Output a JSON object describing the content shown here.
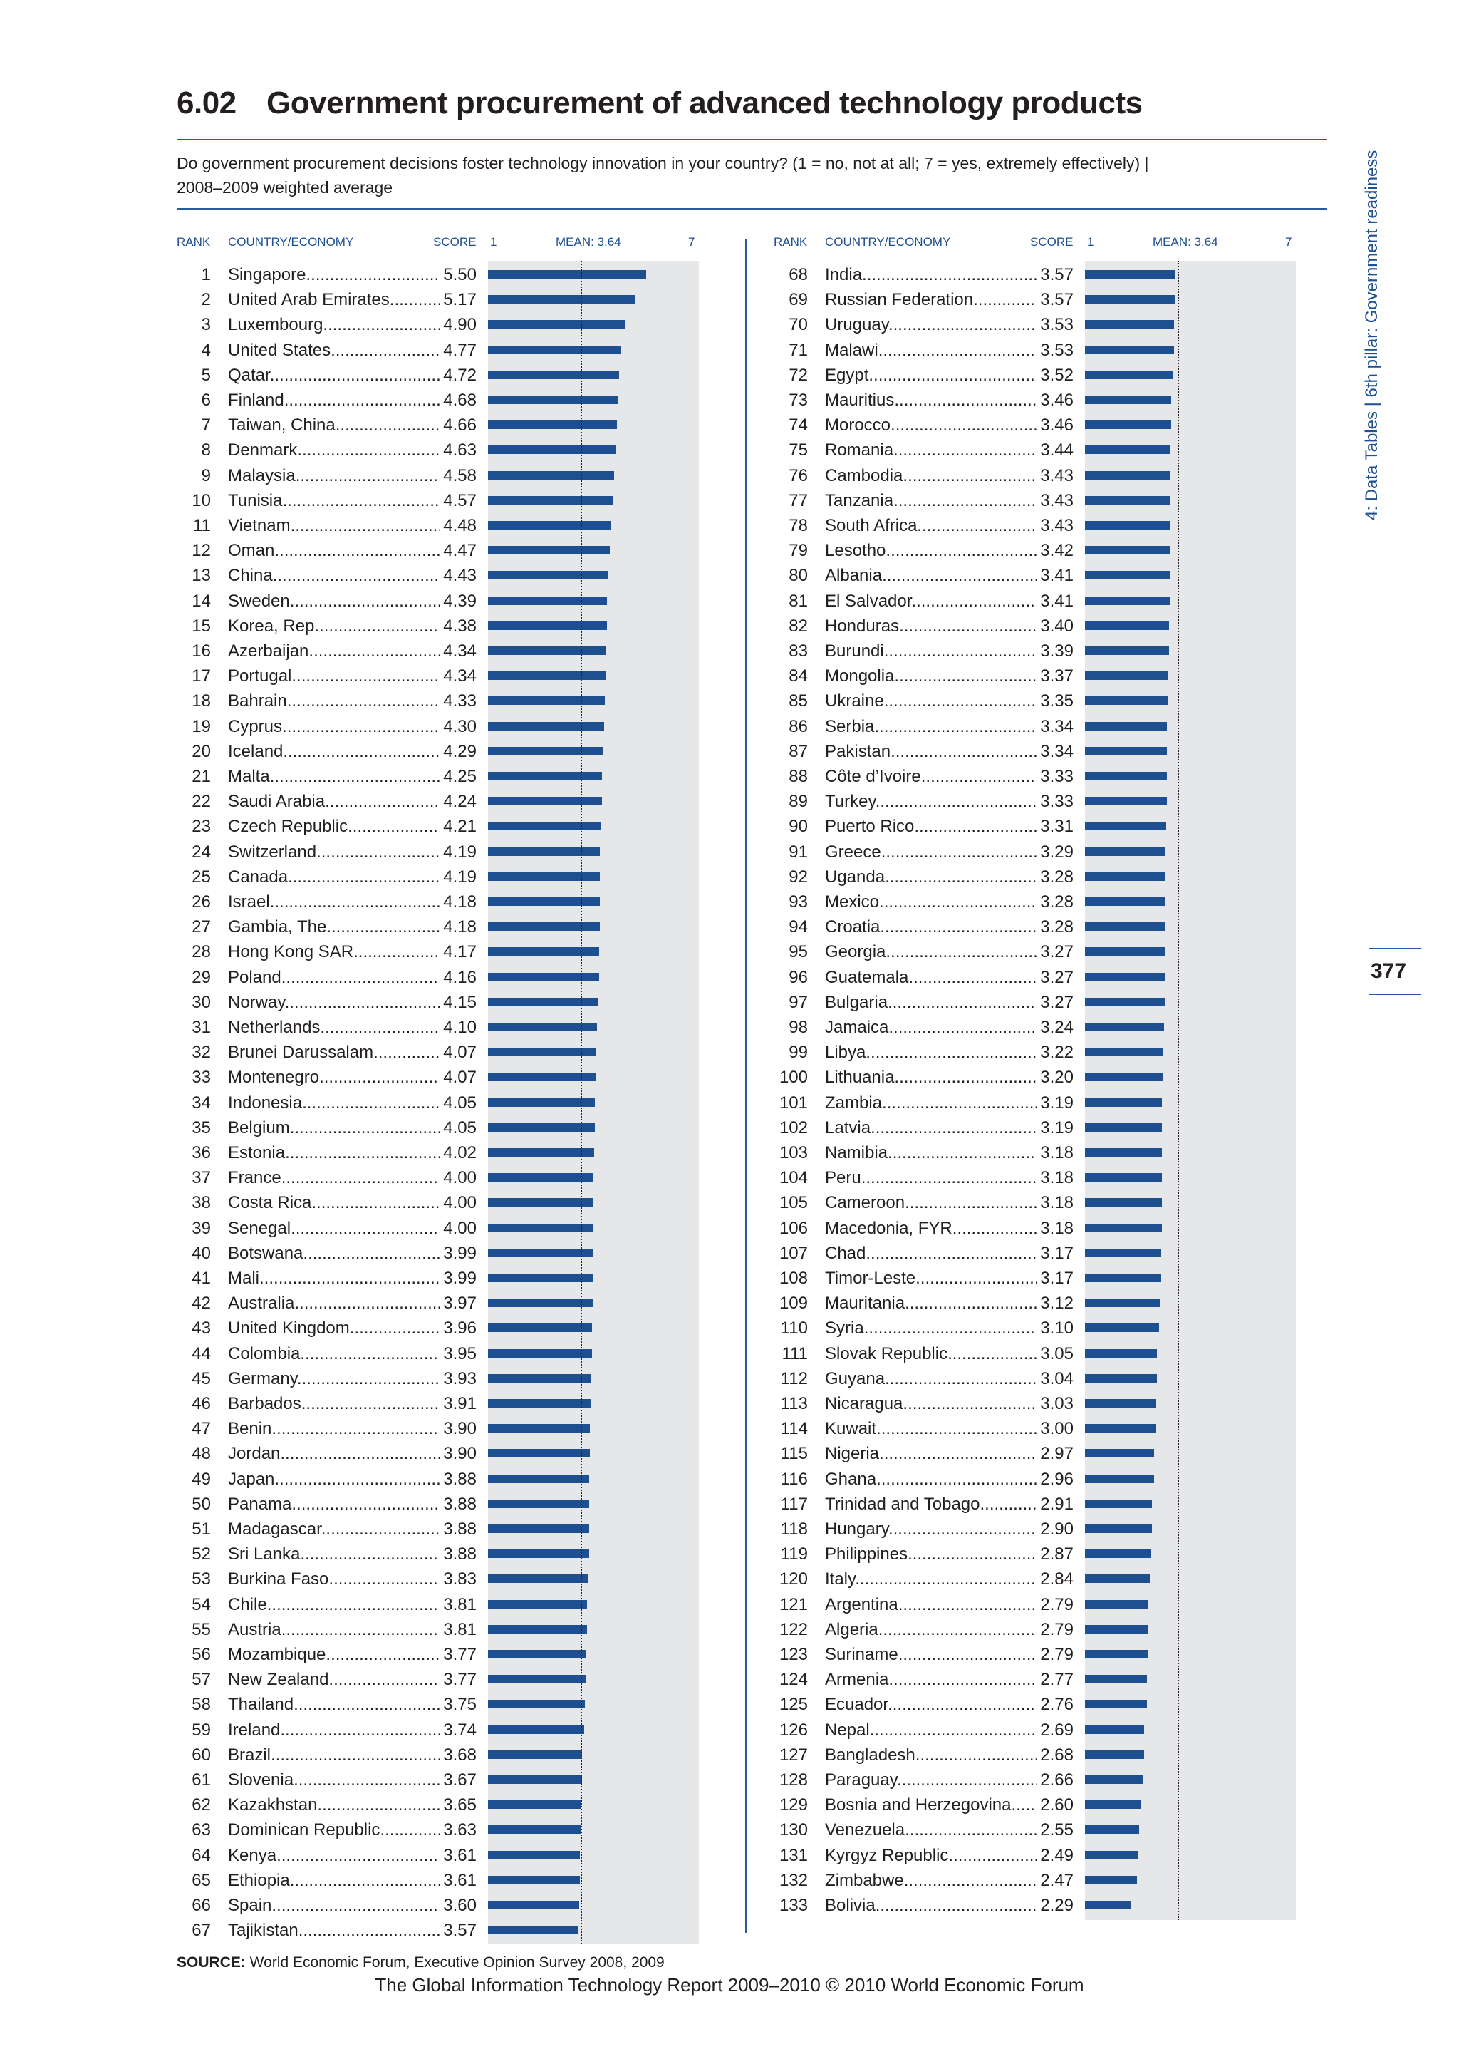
{
  "header": {
    "table_number": "6.02",
    "title": "Government procurement of advanced technology products",
    "question_line1": "Do government procurement decisions foster technology innovation in your country? (1 = no, not at all; 7 = yes, extremely effectively)  |",
    "question_line2": "2008–2009 weighted average"
  },
  "column_headers": {
    "rank": "RANK",
    "country": "COUNTRY/ECONOMY",
    "score": "SCORE",
    "scale_min": "1",
    "mean": "MEAN: 3.64",
    "scale_max": "7"
  },
  "side_label": "4: Data Tables  |  6th pillar: Government readiness",
  "page_number": "377",
  "source": {
    "label": "SOURCE:",
    "text": " World Economic Forum, Executive Opinion Survey 2008, 2009"
  },
  "footer": "The Global Information Technology Report 2009–2010 © 2010 World Economic Forum",
  "chart_data": {
    "type": "bar",
    "orientation": "horizontal",
    "xlim": [
      1,
      7
    ],
    "mean": 3.64,
    "rows": [
      {
        "rank": "1",
        "country": "Singapore",
        "score": 5.5
      },
      {
        "rank": "2",
        "country": "United Arab Emirates",
        "score": 5.17
      },
      {
        "rank": "3",
        "country": "Luxembourg",
        "score": 4.9
      },
      {
        "rank": "4",
        "country": "United States",
        "score": 4.77
      },
      {
        "rank": "5",
        "country": "Qatar",
        "score": 4.72
      },
      {
        "rank": "6",
        "country": "Finland",
        "score": 4.68
      },
      {
        "rank": "7",
        "country": "Taiwan, China",
        "score": 4.66
      },
      {
        "rank": "8",
        "country": "Denmark",
        "score": 4.63
      },
      {
        "rank": "9",
        "country": "Malaysia",
        "score": 4.58
      },
      {
        "rank": "10",
        "country": "Tunisia",
        "score": 4.57
      },
      {
        "rank": "11",
        "country": "Vietnam",
        "score": 4.48
      },
      {
        "rank": "12",
        "country": "Oman",
        "score": 4.47
      },
      {
        "rank": "13",
        "country": "China",
        "score": 4.43
      },
      {
        "rank": "14",
        "country": "Sweden",
        "score": 4.39
      },
      {
        "rank": "15",
        "country": "Korea, Rep.",
        "score": 4.38
      },
      {
        "rank": "16",
        "country": "Azerbaijan",
        "score": 4.34
      },
      {
        "rank": "17",
        "country": "Portugal",
        "score": 4.34
      },
      {
        "rank": "18",
        "country": "Bahrain",
        "score": 4.33
      },
      {
        "rank": "19",
        "country": "Cyprus",
        "score": 4.3
      },
      {
        "rank": "20",
        "country": "Iceland",
        "score": 4.29
      },
      {
        "rank": "21",
        "country": "Malta",
        "score": 4.25
      },
      {
        "rank": "22",
        "country": "Saudi Arabia",
        "score": 4.24
      },
      {
        "rank": "23",
        "country": "Czech Republic",
        "score": 4.21
      },
      {
        "rank": "24",
        "country": "Switzerland",
        "score": 4.19
      },
      {
        "rank": "25",
        "country": "Canada",
        "score": 4.19
      },
      {
        "rank": "26",
        "country": "Israel",
        "score": 4.18
      },
      {
        "rank": "27",
        "country": "Gambia, The",
        "score": 4.18
      },
      {
        "rank": "28",
        "country": "Hong Kong SAR",
        "score": 4.17
      },
      {
        "rank": "29",
        "country": "Poland",
        "score": 4.16
      },
      {
        "rank": "30",
        "country": "Norway",
        "score": 4.15
      },
      {
        "rank": "31",
        "country": "Netherlands",
        "score": 4.1
      },
      {
        "rank": "32",
        "country": "Brunei Darussalam",
        "score": 4.07
      },
      {
        "rank": "33",
        "country": "Montenegro",
        "score": 4.07
      },
      {
        "rank": "34",
        "country": "Indonesia",
        "score": 4.05
      },
      {
        "rank": "35",
        "country": "Belgium",
        "score": 4.05
      },
      {
        "rank": "36",
        "country": "Estonia",
        "score": 4.02
      },
      {
        "rank": "37",
        "country": "France",
        "score": 4.0
      },
      {
        "rank": "38",
        "country": "Costa Rica",
        "score": 4.0
      },
      {
        "rank": "39",
        "country": "Senegal",
        "score": 4.0
      },
      {
        "rank": "40",
        "country": "Botswana",
        "score": 3.99
      },
      {
        "rank": "41",
        "country": "Mali",
        "score": 3.99
      },
      {
        "rank": "42",
        "country": "Australia",
        "score": 3.97
      },
      {
        "rank": "43",
        "country": "United Kingdom",
        "score": 3.96
      },
      {
        "rank": "44",
        "country": "Colombia",
        "score": 3.95
      },
      {
        "rank": "45",
        "country": "Germany",
        "score": 3.93
      },
      {
        "rank": "46",
        "country": "Barbados",
        "score": 3.91
      },
      {
        "rank": "47",
        "country": "Benin",
        "score": 3.9
      },
      {
        "rank": "48",
        "country": "Jordan",
        "score": 3.9
      },
      {
        "rank": "49",
        "country": "Japan",
        "score": 3.88
      },
      {
        "rank": "50",
        "country": "Panama",
        "score": 3.88
      },
      {
        "rank": "51",
        "country": "Madagascar",
        "score": 3.88
      },
      {
        "rank": "52",
        "country": "Sri Lanka",
        "score": 3.88
      },
      {
        "rank": "53",
        "country": "Burkina Faso",
        "score": 3.83
      },
      {
        "rank": "54",
        "country": "Chile",
        "score": 3.81
      },
      {
        "rank": "55",
        "country": "Austria",
        "score": 3.81
      },
      {
        "rank": "56",
        "country": "Mozambique",
        "score": 3.77
      },
      {
        "rank": "57",
        "country": "New Zealand",
        "score": 3.77
      },
      {
        "rank": "58",
        "country": "Thailand",
        "score": 3.75
      },
      {
        "rank": "59",
        "country": "Ireland",
        "score": 3.74
      },
      {
        "rank": "60",
        "country": "Brazil",
        "score": 3.68
      },
      {
        "rank": "61",
        "country": "Slovenia",
        "score": 3.67
      },
      {
        "rank": "62",
        "country": "Kazakhstan",
        "score": 3.65
      },
      {
        "rank": "63",
        "country": "Dominican Republic",
        "score": 3.63
      },
      {
        "rank": "64",
        "country": "Kenya",
        "score": 3.61
      },
      {
        "rank": "65",
        "country": "Ethiopia",
        "score": 3.61
      },
      {
        "rank": "66",
        "country": "Spain",
        "score": 3.6
      },
      {
        "rank": "67",
        "country": "Tajikistan",
        "score": 3.57
      },
      {
        "rank": "68",
        "country": "India",
        "score": 3.57
      },
      {
        "rank": "69",
        "country": "Russian Federation",
        "score": 3.57
      },
      {
        "rank": "70",
        "country": "Uruguay",
        "score": 3.53
      },
      {
        "rank": "71",
        "country": "Malawi",
        "score": 3.53
      },
      {
        "rank": "72",
        "country": "Egypt",
        "score": 3.52
      },
      {
        "rank": "73",
        "country": "Mauritius",
        "score": 3.46
      },
      {
        "rank": "74",
        "country": "Morocco",
        "score": 3.46
      },
      {
        "rank": "75",
        "country": "Romania",
        "score": 3.44
      },
      {
        "rank": "76",
        "country": "Cambodia",
        "score": 3.43
      },
      {
        "rank": "77",
        "country": "Tanzania",
        "score": 3.43
      },
      {
        "rank": "78",
        "country": "South Africa",
        "score": 3.43
      },
      {
        "rank": "79",
        "country": "Lesotho",
        "score": 3.42
      },
      {
        "rank": "80",
        "country": "Albania",
        "score": 3.41
      },
      {
        "rank": "81",
        "country": "El Salvador",
        "score": 3.41
      },
      {
        "rank": "82",
        "country": "Honduras",
        "score": 3.4
      },
      {
        "rank": "83",
        "country": "Burundi",
        "score": 3.39
      },
      {
        "rank": "84",
        "country": "Mongolia",
        "score": 3.37
      },
      {
        "rank": "85",
        "country": "Ukraine",
        "score": 3.35
      },
      {
        "rank": "86",
        "country": "Serbia",
        "score": 3.34
      },
      {
        "rank": "87",
        "country": "Pakistan",
        "score": 3.34
      },
      {
        "rank": "88",
        "country": "Côte d’Ivoire",
        "score": 3.33
      },
      {
        "rank": "89",
        "country": "Turkey",
        "score": 3.33
      },
      {
        "rank": "90",
        "country": "Puerto Rico",
        "score": 3.31
      },
      {
        "rank": "91",
        "country": "Greece",
        "score": 3.29
      },
      {
        "rank": "92",
        "country": "Uganda",
        "score": 3.28
      },
      {
        "rank": "93",
        "country": "Mexico",
        "score": 3.28
      },
      {
        "rank": "94",
        "country": "Croatia",
        "score": 3.28
      },
      {
        "rank": "95",
        "country": "Georgia",
        "score": 3.27
      },
      {
        "rank": "96",
        "country": "Guatemala",
        "score": 3.27
      },
      {
        "rank": "97",
        "country": "Bulgaria",
        "score": 3.27
      },
      {
        "rank": "98",
        "country": "Jamaica",
        "score": 3.24
      },
      {
        "rank": "99",
        "country": "Libya",
        "score": 3.22
      },
      {
        "rank": "100",
        "country": "Lithuania",
        "score": 3.2
      },
      {
        "rank": "101",
        "country": "Zambia",
        "score": 3.19
      },
      {
        "rank": "102",
        "country": "Latvia",
        "score": 3.19
      },
      {
        "rank": "103",
        "country": "Namibia",
        "score": 3.18
      },
      {
        "rank": "104",
        "country": "Peru",
        "score": 3.18
      },
      {
        "rank": "105",
        "country": "Cameroon",
        "score": 3.18
      },
      {
        "rank": "106",
        "country": "Macedonia, FYR",
        "score": 3.18
      },
      {
        "rank": "107",
        "country": "Chad",
        "score": 3.17
      },
      {
        "rank": "108",
        "country": "Timor-Leste",
        "score": 3.17
      },
      {
        "rank": "109",
        "country": "Mauritania",
        "score": 3.12
      },
      {
        "rank": "110",
        "country": "Syria",
        "score": 3.1
      },
      {
        "rank": "111",
        "country": "Slovak Republic",
        "score": 3.05
      },
      {
        "rank": "112",
        "country": "Guyana",
        "score": 3.04
      },
      {
        "rank": "113",
        "country": "Nicaragua",
        "score": 3.03
      },
      {
        "rank": "114",
        "country": "Kuwait",
        "score": 3.0
      },
      {
        "rank": "115",
        "country": "Nigeria",
        "score": 2.97
      },
      {
        "rank": "116",
        "country": "Ghana",
        "score": 2.96
      },
      {
        "rank": "117",
        "country": "Trinidad and Tobago",
        "score": 2.91
      },
      {
        "rank": "118",
        "country": "Hungary",
        "score": 2.9
      },
      {
        "rank": "119",
        "country": "Philippines",
        "score": 2.87
      },
      {
        "rank": "120",
        "country": "Italy",
        "score": 2.84
      },
      {
        "rank": "121",
        "country": "Argentina",
        "score": 2.79
      },
      {
        "rank": "122",
        "country": "Algeria",
        "score": 2.79
      },
      {
        "rank": "123",
        "country": "Suriname",
        "score": 2.79
      },
      {
        "rank": "124",
        "country": "Armenia",
        "score": 2.77
      },
      {
        "rank": "125",
        "country": "Ecuador",
        "score": 2.76
      },
      {
        "rank": "126",
        "country": "Nepal",
        "score": 2.69
      },
      {
        "rank": "127",
        "country": "Bangladesh",
        "score": 2.68
      },
      {
        "rank": "128",
        "country": "Paraguay",
        "score": 2.66
      },
      {
        "rank": "129",
        "country": "Bosnia and Herzegovina",
        "score": 2.6
      },
      {
        "rank": "130",
        "country": "Venezuela",
        "score": 2.55
      },
      {
        "rank": "131",
        "country": "Kyrgyz Republic",
        "score": 2.49
      },
      {
        "rank": "132",
        "country": "Zimbabwe",
        "score": 2.47
      },
      {
        "rank": "133",
        "country": "Bolivia",
        "score": 2.29
      }
    ]
  }
}
